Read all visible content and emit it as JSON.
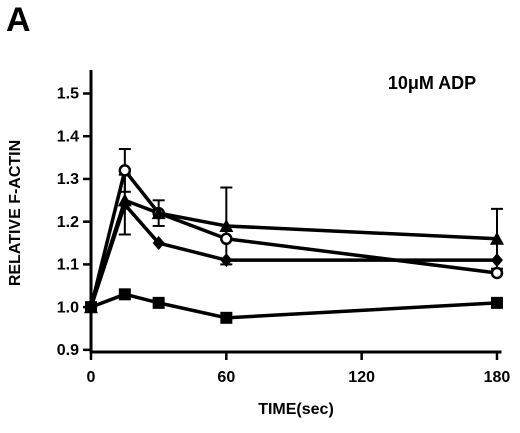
{
  "chart_data": {
    "type": "line",
    "panel_label": "A",
    "annotation": "10μM ADP",
    "xlabel": "TIME(sec)",
    "ylabel": "RELATIVE F-ACTIN",
    "x": [
      0,
      15,
      30,
      60,
      180
    ],
    "series": [
      {
        "color": "#000000",
        "marker": "square",
        "values": [
          1.0,
          1.03,
          1.01,
          0.975,
          1.01
        ],
        "errors": [
          null,
          null,
          null,
          null,
          null
        ]
      },
      {
        "color": "#000000",
        "marker": "circle-open",
        "values": [
          1.0,
          1.32,
          1.22,
          1.16,
          1.08
        ],
        "errors": [
          null,
          0.05,
          null,
          null,
          null
        ]
      },
      {
        "color": "#000000",
        "marker": "triangle",
        "values": [
          1.0,
          1.25,
          1.22,
          1.19,
          1.16
        ],
        "errors": [
          null,
          null,
          0.03,
          0.09,
          0.07
        ]
      },
      {
        "color": "#000000",
        "marker": "diamond",
        "values": [
          1.0,
          1.24,
          1.15,
          1.11,
          1.11
        ],
        "errors": [
          null,
          0.07,
          null,
          null,
          null
        ]
      }
    ],
    "xlim": [
      0,
      182
    ],
    "xticks": [
      0,
      60,
      120,
      180
    ],
    "ylim": [
      0.895,
      1.555
    ],
    "yticks": [
      0.9,
      {
        "value": 1,
        "label": "1.0"
      },
      1.1,
      1.2,
      1.3,
      1.4,
      1.5
    ],
    "grid": false
  }
}
